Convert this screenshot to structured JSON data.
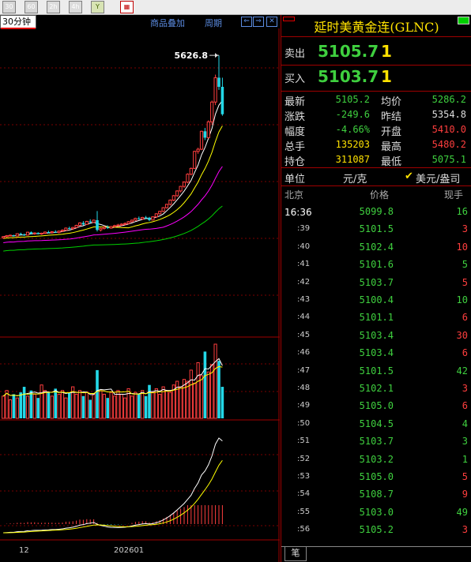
{
  "toolbar": {
    "buttons": [
      {
        "label": "30",
        "name": "period-30"
      },
      {
        "label": "60",
        "name": "period-60"
      },
      {
        "label": "2h",
        "name": "period-2h"
      },
      {
        "label": "4h",
        "name": "period-4h"
      },
      {
        "label": "Y",
        "name": "period-year"
      }
    ]
  },
  "chart_header": {
    "period": "30分钟",
    "overlay": "商品叠加",
    "cycle": "周期"
  },
  "chart_data": [
    {
      "type": "candlestick",
      "panel": "price",
      "annotation": "5626.8",
      "ohlc": [
        [
          4428,
          4440,
          4422,
          4436
        ],
        [
          4436,
          4446,
          4430,
          4442
        ],
        [
          4442,
          4450,
          4438,
          4445
        ],
        [
          4445,
          4448,
          4436,
          4440
        ],
        [
          4440,
          4458,
          4438,
          4455
        ],
        [
          4455,
          4462,
          4446,
          4450
        ],
        [
          4450,
          4456,
          4440,
          4446
        ],
        [
          4446,
          4468,
          4444,
          4465
        ],
        [
          4465,
          4470,
          4450,
          4455
        ],
        [
          4455,
          4464,
          4448,
          4460
        ],
        [
          4460,
          4465,
          4450,
          4454
        ],
        [
          4454,
          4462,
          4448,
          4458
        ],
        [
          4458,
          4470,
          4452,
          4466
        ],
        [
          4466,
          4475,
          4458,
          4462
        ],
        [
          4462,
          4472,
          4455,
          4468
        ],
        [
          4468,
          4478,
          4460,
          4464
        ],
        [
          4464,
          4476,
          4458,
          4472
        ],
        [
          4472,
          4484,
          4466,
          4478
        ],
        [
          4478,
          4496,
          4474,
          4492
        ],
        [
          4492,
          4502,
          4484,
          4488
        ],
        [
          4488,
          4500,
          4480,
          4496
        ],
        [
          4496,
          4514,
          4492,
          4510
        ],
        [
          4510,
          4530,
          4504,
          4526
        ],
        [
          4526,
          4538,
          4510,
          4516
        ],
        [
          4516,
          4540,
          4514,
          4536
        ],
        [
          4536,
          4550,
          4526,
          4530
        ],
        [
          4530,
          4548,
          4526,
          4544
        ],
        [
          4544,
          4604,
          4470,
          4480
        ],
        [
          4480,
          4494,
          4470,
          4490
        ],
        [
          4490,
          4506,
          4482,
          4498
        ],
        [
          4498,
          4510,
          4486,
          4492
        ],
        [
          4492,
          4506,
          4488,
          4502
        ],
        [
          4502,
          4514,
          4496,
          4508
        ],
        [
          4508,
          4520,
          4500,
          4512
        ],
        [
          4512,
          4524,
          4504,
          4518
        ],
        [
          4518,
          4530,
          4510,
          4522
        ],
        [
          4522,
          4538,
          4516,
          4534
        ],
        [
          4534,
          4548,
          4528,
          4544
        ],
        [
          4544,
          4560,
          4538,
          4556
        ],
        [
          4556,
          4568,
          4546,
          4552
        ],
        [
          4552,
          4566,
          4546,
          4562
        ],
        [
          4562,
          4572,
          4552,
          4560
        ],
        [
          4560,
          4566,
          4538,
          4545
        ],
        [
          4545,
          4570,
          4542,
          4566
        ],
        [
          4566,
          4590,
          4560,
          4586
        ],
        [
          4586,
          4606,
          4580,
          4602
        ],
        [
          4602,
          4630,
          4596,
          4626
        ],
        [
          4626,
          4652,
          4620,
          4648
        ],
        [
          4648,
          4680,
          4640,
          4676
        ],
        [
          4676,
          4710,
          4668,
          4705
        ],
        [
          4705,
          4740,
          4696,
          4736
        ],
        [
          4736,
          4770,
          4726,
          4766
        ],
        [
          4766,
          4800,
          4756,
          4794
        ],
        [
          4794,
          4852,
          4786,
          4846
        ],
        [
          4846,
          4890,
          4838,
          4884
        ],
        [
          4884,
          5000,
          4880,
          4996
        ],
        [
          4996,
          5020,
          4980,
          5010
        ],
        [
          5010,
          5132,
          5004,
          5128
        ],
        [
          5128,
          5150,
          5070,
          5086
        ],
        [
          5086,
          5200,
          5080,
          5190
        ],
        [
          5190,
          5330,
          5170,
          5320
        ],
        [
          5320,
          5500,
          5300,
          5480
        ],
        [
          5480,
          5626.8,
          5400,
          5420
        ],
        [
          5420,
          5480,
          5230,
          5240
        ]
      ],
      "ma": [
        {
          "name": "MA5",
          "color": "#ffffff"
        },
        {
          "name": "MA10",
          "color": "#ffff00"
        },
        {
          "name": "MA20",
          "color": "#ff00ff"
        },
        {
          "name": "MA60",
          "color": "#00d000"
        }
      ],
      "xlabels": [
        "12",
        "202601"
      ]
    },
    {
      "type": "bar",
      "panel": "volume",
      "values": [
        24,
        30,
        20,
        26,
        22,
        28,
        34,
        24,
        30,
        26,
        22,
        36,
        30,
        28,
        24,
        32,
        26,
        30,
        22,
        28,
        34,
        26,
        30,
        24,
        28,
        20,
        26,
        52,
        30,
        26,
        22,
        28,
        24,
        30,
        26,
        22,
        32,
        24,
        28,
        26,
        30,
        24,
        36,
        28,
        32,
        26,
        34,
        30,
        28,
        36,
        40,
        34,
        42,
        40,
        52,
        38,
        60,
        46,
        72,
        50,
        58,
        80,
        62,
        34
      ],
      "up_color": "#ff3e3e",
      "down_color": "#23d8e8"
    },
    {
      "type": "line",
      "panel": "macd",
      "series": [
        {
          "name": "DIF",
          "color": "#ffffff"
        },
        {
          "name": "DEA",
          "color": "#ffff00"
        }
      ],
      "histogram_color": "#ff3e3e"
    }
  ],
  "quote": {
    "title": "延时美黄金连(GLNC)",
    "sell_label": "卖出",
    "sell_price": "5105.7",
    "sell_qty": "1",
    "buy_label": "买入",
    "buy_price": "5103.7",
    "buy_qty": "1",
    "stats": [
      {
        "label": "最新",
        "value": "5105.2",
        "color": "#3fd03f",
        "label2": "均价",
        "value2": "5286.2",
        "color2": "#3fd03f"
      },
      {
        "label": "涨跌",
        "value": "-249.6",
        "color": "#3fd03f",
        "label2": "昨结",
        "value2": "5354.8",
        "color2": "#dddddd"
      },
      {
        "label": "幅度",
        "value": "-4.66%",
        "color": "#3fd03f",
        "label2": "开盘",
        "value2": "5410.0",
        "color2": "#ff3e3e"
      },
      {
        "label": "总手",
        "value": "135203",
        "color": "#ffe200",
        "label2": "最高",
        "value2": "5480.2",
        "color2": "#ff3e3e"
      },
      {
        "label": "持仓",
        "value": "311087",
        "color": "#ffe200",
        "label2": "最低",
        "value2": "5075.1",
        "color2": "#3fd03f"
      }
    ],
    "unit_label": "单位",
    "unit_value": "元/克",
    "unit_alt": "美元/盎司",
    "tick_headers": {
      "place": "北京",
      "price": "价格",
      "volume": "现手"
    },
    "ticks": [
      {
        "time": "16:36",
        "price": "5099.8",
        "vol": "16",
        "vol_color": "g"
      },
      {
        "time": ":39",
        "price": "5101.5",
        "vol": "3",
        "vol_color": "r"
      },
      {
        "time": ":40",
        "price": "5102.4",
        "vol": "10",
        "vol_color": "r"
      },
      {
        "time": ":41",
        "price": "5101.6",
        "vol": "5",
        "vol_color": "g"
      },
      {
        "time": ":42",
        "price": "5103.7",
        "vol": "5",
        "vol_color": "r"
      },
      {
        "time": ":43",
        "price": "5100.4",
        "vol": "10",
        "vol_color": "g"
      },
      {
        "time": ":44",
        "price": "5101.1",
        "vol": "6",
        "vol_color": "r"
      },
      {
        "time": ":45",
        "price": "5103.4",
        "vol": "30",
        "vol_color": "r"
      },
      {
        "time": ":46",
        "price": "5103.4",
        "vol": "6",
        "vol_color": "r"
      },
      {
        "time": ":47",
        "price": "5101.5",
        "vol": "42",
        "vol_color": "g"
      },
      {
        "time": ":48",
        "price": "5102.1",
        "vol": "3",
        "vol_color": "r"
      },
      {
        "time": ":49",
        "price": "5105.0",
        "vol": "6",
        "vol_color": "r"
      },
      {
        "time": ":50",
        "price": "5104.5",
        "vol": "4",
        "vol_color": "g"
      },
      {
        "time": ":51",
        "price": "5103.7",
        "vol": "3",
        "vol_color": "g"
      },
      {
        "time": ":52",
        "price": "5103.2",
        "vol": "1",
        "vol_color": "g"
      },
      {
        "time": ":53",
        "price": "5105.0",
        "vol": "5",
        "vol_color": "r"
      },
      {
        "time": ":54",
        "price": "5108.7",
        "vol": "9",
        "vol_color": "r"
      },
      {
        "time": ":55",
        "price": "5103.0",
        "vol": "49",
        "vol_color": "g"
      },
      {
        "time": ":56",
        "price": "5105.2",
        "vol": "3",
        "vol_color": "r"
      }
    ],
    "bottom_tab": "笔"
  }
}
